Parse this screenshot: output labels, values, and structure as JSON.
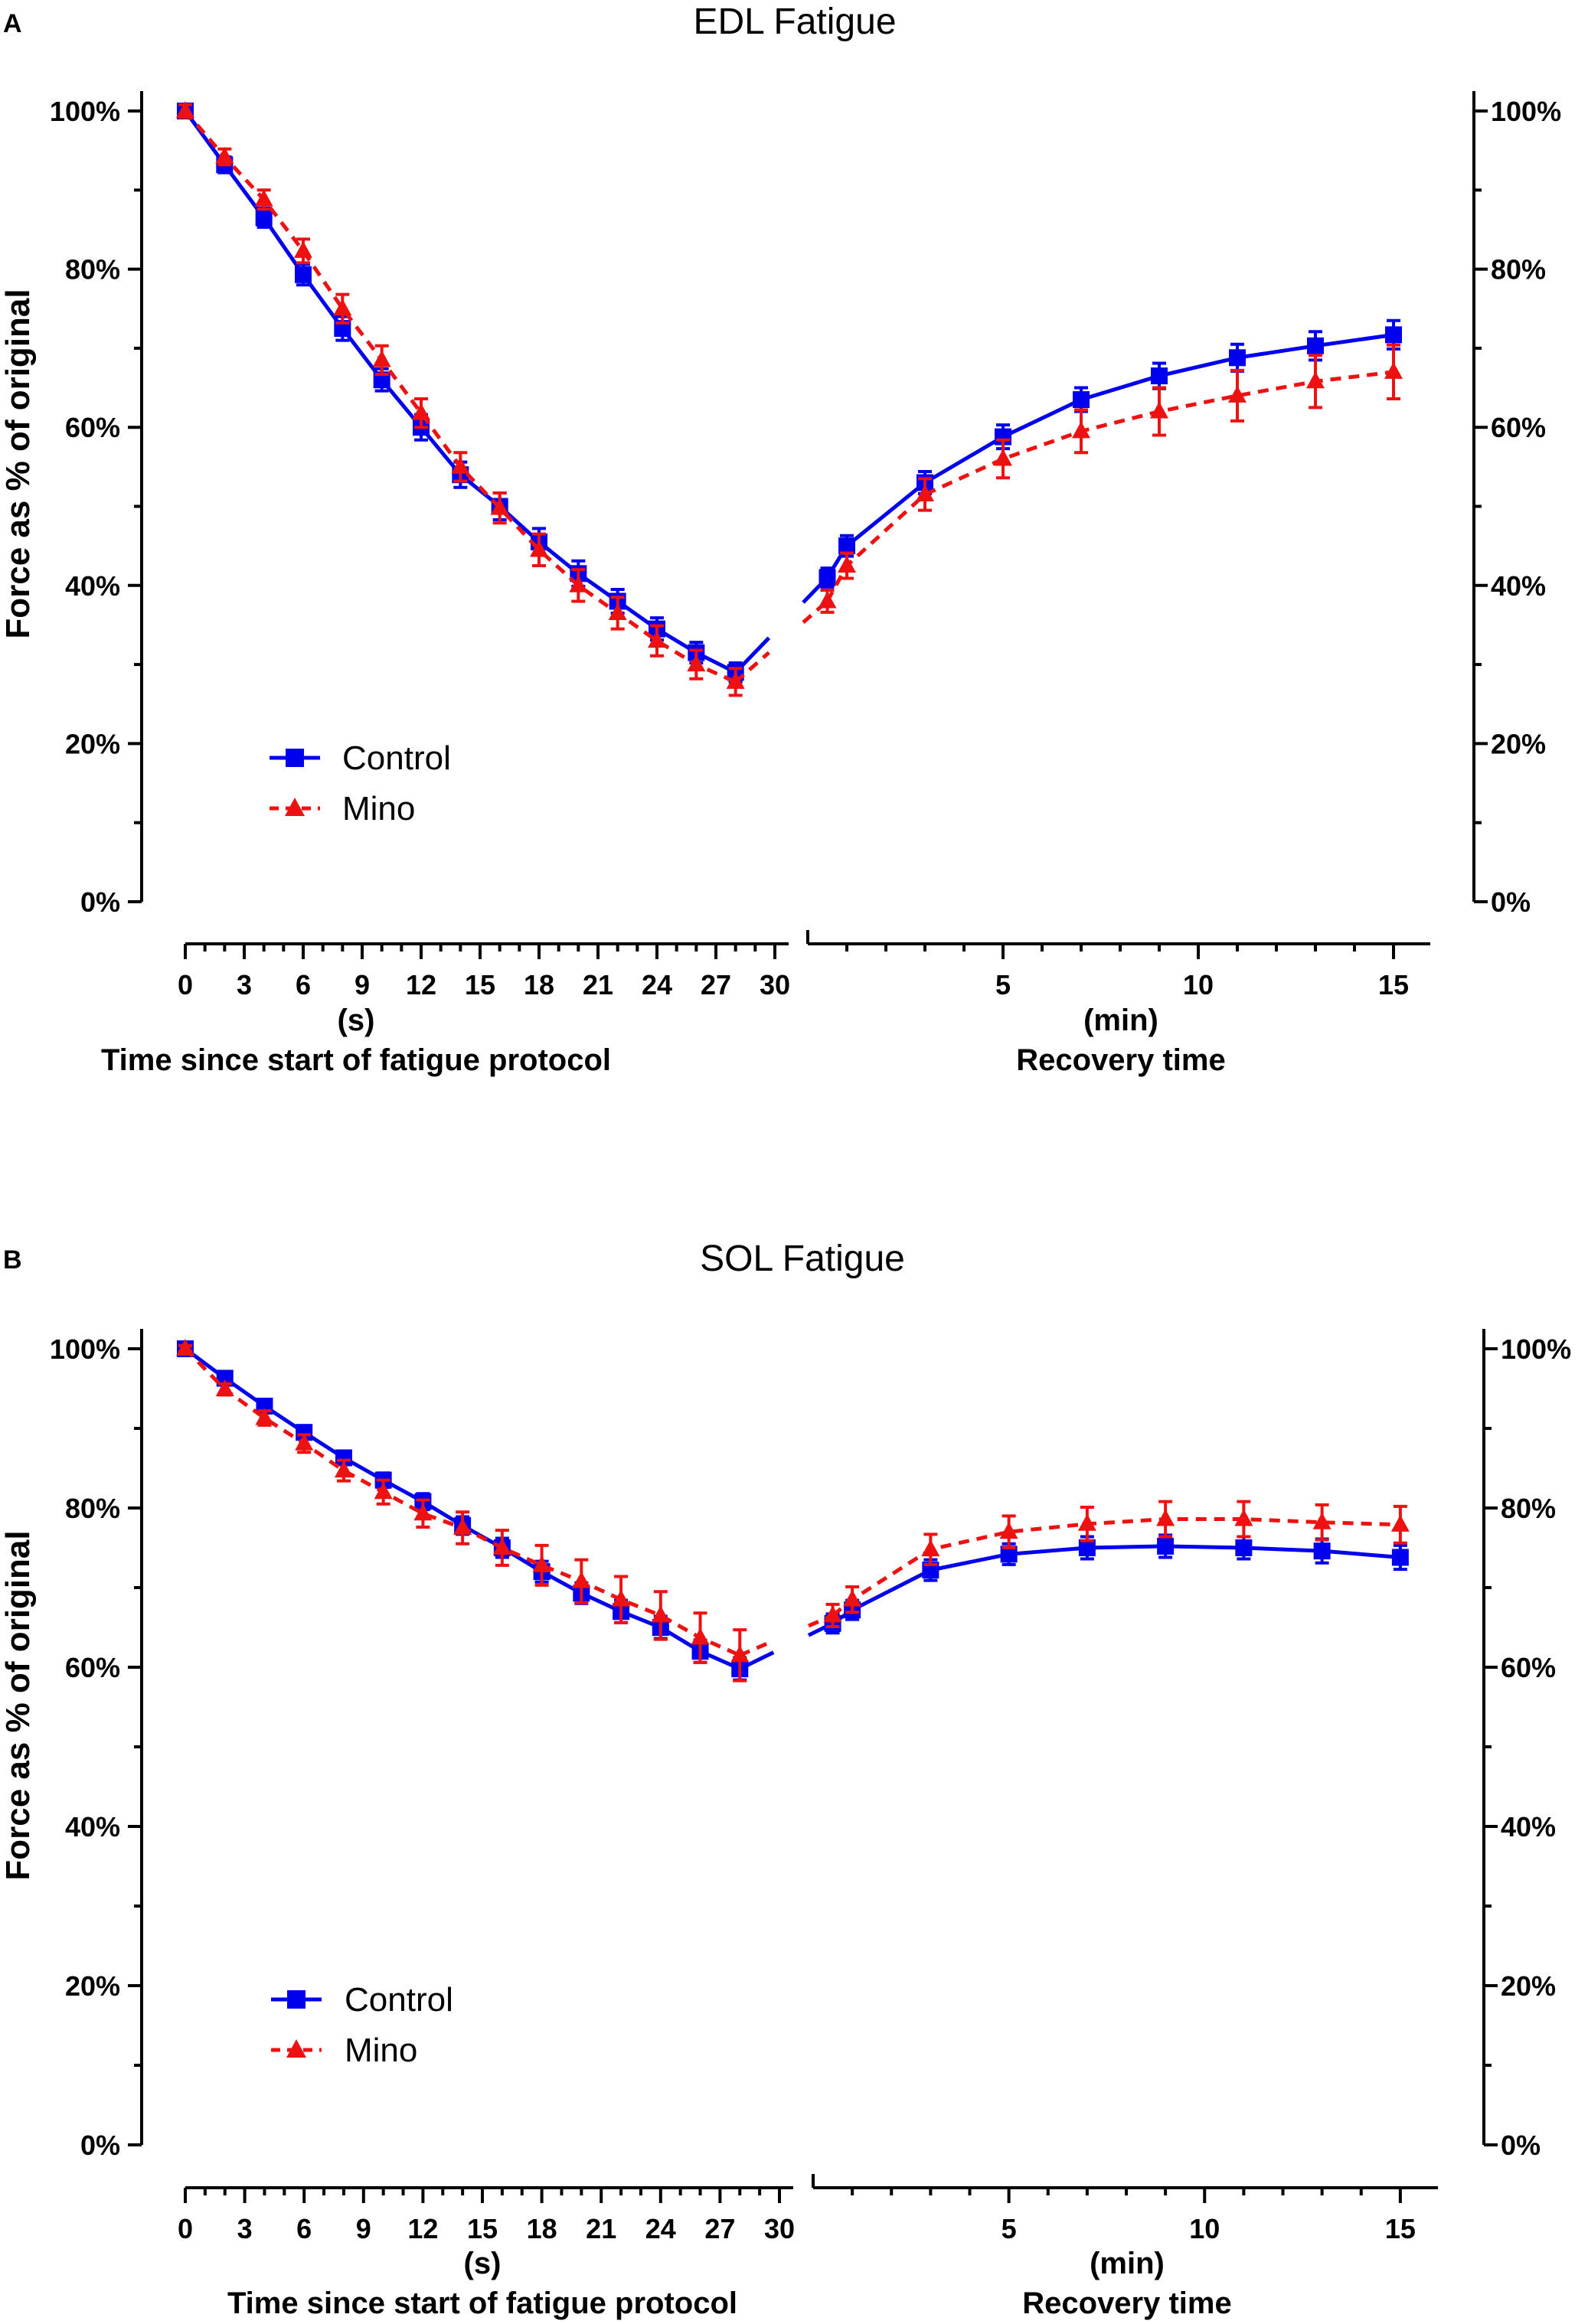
{
  "chart_data": [
    {
      "type": "line",
      "panel_letter": "A",
      "title": "EDL Fatigue",
      "ylabel": "Force as % of original",
      "ylim": [
        0,
        100
      ],
      "y_ticks": [
        "0%",
        "20%",
        "40%",
        "60%",
        "80%",
        "100%"
      ],
      "y_tick_values": [
        0,
        20,
        40,
        60,
        80,
        100
      ],
      "fatigue_axis": {
        "unit": "(s)",
        "xlabel": "Time since start of fatigue protocol",
        "xlim": [
          0,
          30
        ],
        "ticks": [
          0,
          3,
          6,
          9,
          12,
          15,
          18,
          21,
          24,
          27,
          30
        ],
        "tick_labels": [
          "0",
          "3",
          "6",
          "9",
          "12",
          "15",
          "18",
          "21",
          "24",
          "27",
          "30"
        ]
      },
      "recovery_axis": {
        "unit": "(min)",
        "xlabel": "Recovery time",
        "xlim": [
          0,
          16
        ],
        "ticks": [
          5,
          10,
          15
        ],
        "tick_labels": [
          "5",
          "10",
          "15"
        ]
      },
      "legend": {
        "position": "lower-left"
      },
      "series": [
        {
          "name": "Control",
          "color": "#0000ee",
          "marker": "square",
          "line": "solid",
          "fatigue": {
            "x": [
              0,
              2,
              4,
              6,
              8,
              10,
              12,
              14,
              16,
              18,
              20,
              22,
              24,
              26,
              28
            ],
            "y": [
              100,
              93.2,
              86.5,
              79.3,
              72.5,
              66.0,
              60.0,
              54.0,
              50.0,
              45.5,
              41.5,
              38.0,
              34.5,
              31.5,
              29.0
            ],
            "err": [
              0.8,
              1.0,
              1.2,
              1.3,
              1.5,
              1.4,
              1.6,
              1.6,
              1.7,
              1.7,
              1.6,
              1.5,
              1.4,
              1.3,
              1.2
            ]
          },
          "recovery": {
            "x": [
              0.5,
              1,
              3,
              5,
              7,
              9,
              11,
              13,
              15
            ],
            "y": [
              41.0,
              45.0,
              53.0,
              58.8,
              63.5,
              66.5,
              68.8,
              70.3,
              71.7
            ],
            "err": [
              1.2,
              1.3,
              1.4,
              1.5,
              1.5,
              1.6,
              1.7,
              1.8,
              1.8
            ]
          }
        },
        {
          "name": "Mino",
          "color": "#ee1111",
          "marker": "triangle",
          "line": "dashed",
          "fatigue": {
            "x": [
              0,
              2,
              4,
              6,
              8,
              10,
              12,
              14,
              16,
              18,
              20,
              22,
              24,
              26,
              28
            ],
            "y": [
              100,
              94.2,
              88.8,
              82.3,
              75.0,
              68.5,
              61.8,
              55.0,
              49.8,
              44.5,
              40.0,
              36.5,
              33.0,
              30.0,
              27.8
            ],
            "err": [
              0.8,
              1.0,
              1.2,
              1.5,
              1.8,
              1.8,
              1.8,
              1.8,
              1.9,
              2.0,
              2.0,
              2.0,
              1.9,
              1.8,
              1.7
            ]
          },
          "recovery": {
            "x": [
              0.5,
              1,
              3,
              5,
              7,
              9,
              11,
              13,
              15
            ],
            "y": [
              38.0,
              42.5,
              51.5,
              56.0,
              59.5,
              62.0,
              64.0,
              65.8,
              67.0
            ],
            "err": [
              1.4,
              1.6,
              2.0,
              2.4,
              2.7,
              3.0,
              3.2,
              3.3,
              3.4
            ]
          }
        }
      ]
    },
    {
      "type": "line",
      "panel_letter": "B",
      "title": "SOL Fatigue",
      "ylabel": "Force as % of original",
      "ylim": [
        0,
        100
      ],
      "y_ticks": [
        "0%",
        "20%",
        "40%",
        "60%",
        "80%",
        "100%"
      ],
      "y_tick_values": [
        0,
        20,
        40,
        60,
        80,
        100
      ],
      "fatigue_axis": {
        "unit": "(s)",
        "xlabel": "Time since start of fatigue protocol",
        "xlim": [
          0,
          30
        ],
        "ticks": [
          0,
          3,
          6,
          9,
          12,
          15,
          18,
          21,
          24,
          27,
          30
        ],
        "tick_labels": [
          "0",
          "3",
          "6",
          "9",
          "12",
          "15",
          "18",
          "21",
          "24",
          "27",
          "30"
        ]
      },
      "recovery_axis": {
        "unit": "(min)",
        "xlabel": "Recovery time",
        "xlim": [
          0,
          16
        ],
        "ticks": [
          5,
          10,
          15
        ],
        "tick_labels": [
          "5",
          "10",
          "15"
        ]
      },
      "legend": {
        "position": "lower-left"
      },
      "series": [
        {
          "name": "Control",
          "color": "#0000ee",
          "marker": "square",
          "line": "solid",
          "fatigue": {
            "x": [
              0,
              2,
              4,
              6,
              8,
              10,
              12,
              14,
              16,
              18,
              20,
              22,
              24,
              26,
              28
            ],
            "y": [
              100,
              96.3,
              92.8,
              89.5,
              86.3,
              83.5,
              80.8,
              77.8,
              75.0,
              72.0,
              69.3,
              67.0,
              65.0,
              62.0,
              59.8
            ],
            "err": [
              0.4,
              0.5,
              0.6,
              0.7,
              0.8,
              0.9,
              1.0,
              1.1,
              1.2,
              1.3,
              1.3,
              1.4,
              1.4,
              1.4,
              1.4
            ]
          },
          "recovery": {
            "x": [
              0.5,
              1,
              3,
              5,
              7,
              9,
              11,
              13,
              15
            ],
            "y": [
              65.5,
              67.2,
              72.2,
              74.2,
              75.0,
              75.2,
              75.0,
              74.6,
              73.8
            ],
            "err": [
              1.2,
              1.2,
              1.3,
              1.3,
              1.4,
              1.4,
              1.4,
              1.5,
              1.5
            ]
          }
        },
        {
          "name": "Mino",
          "color": "#ee1111",
          "marker": "triangle",
          "line": "dashed",
          "fatigue": {
            "x": [
              0,
              2,
              4,
              6,
              8,
              10,
              12,
              14,
              16,
              18,
              20,
              22,
              24,
              26,
              28
            ],
            "y": [
              100,
              94.9,
              91.3,
              88.1,
              84.7,
              82.0,
              79.3,
              77.5,
              75.0,
              72.8,
              70.8,
              68.5,
              66.5,
              63.7,
              61.5
            ],
            "err": [
              0.4,
              0.7,
              0.9,
              1.1,
              1.3,
              1.5,
              1.7,
              2.0,
              2.2,
              2.5,
              2.7,
              2.9,
              3.0,
              3.1,
              3.2
            ]
          },
          "recovery": {
            "x": [
              0.5,
              1,
              3,
              5,
              7,
              9,
              11,
              13,
              15
            ],
            "y": [
              66.5,
              68.5,
              74.8,
              77.0,
              78.0,
              78.6,
              78.6,
              78.2,
              77.9
            ],
            "err": [
              1.4,
              1.6,
              1.9,
              2.0,
              2.1,
              2.2,
              2.2,
              2.2,
              2.3
            ]
          }
        }
      ]
    }
  ]
}
